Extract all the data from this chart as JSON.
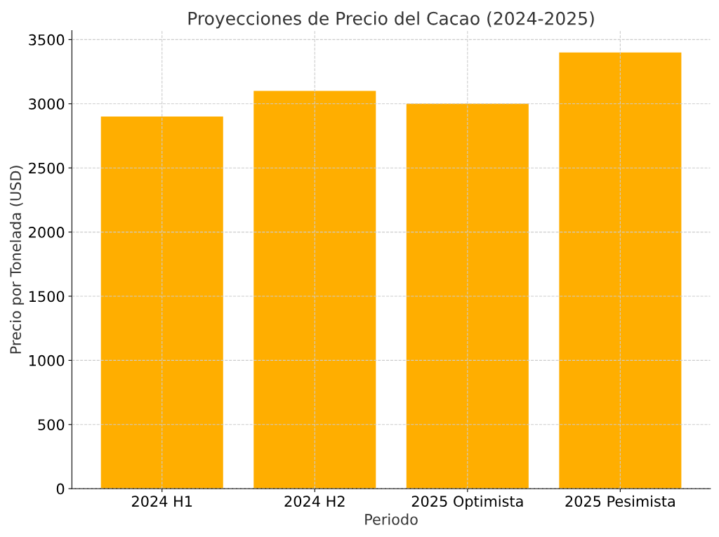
{
  "chart_data": {
    "type": "bar",
    "title": "Proyecciones de Precio del Cacao (2024-2025)",
    "xlabel": "Periodo",
    "ylabel": "Precio por Tonelada (USD)",
    "categories": [
      "2024 H1",
      "2024 H2",
      "2025 Optimista",
      "2025 Pesimista"
    ],
    "values": [
      2900,
      3100,
      3000,
      3400
    ],
    "color": "#ffae00",
    "ylim": [
      0,
      3570
    ],
    "yticks": [
      0,
      500,
      1000,
      1500,
      2000,
      2500,
      3000,
      3500
    ],
    "grid": true
  }
}
